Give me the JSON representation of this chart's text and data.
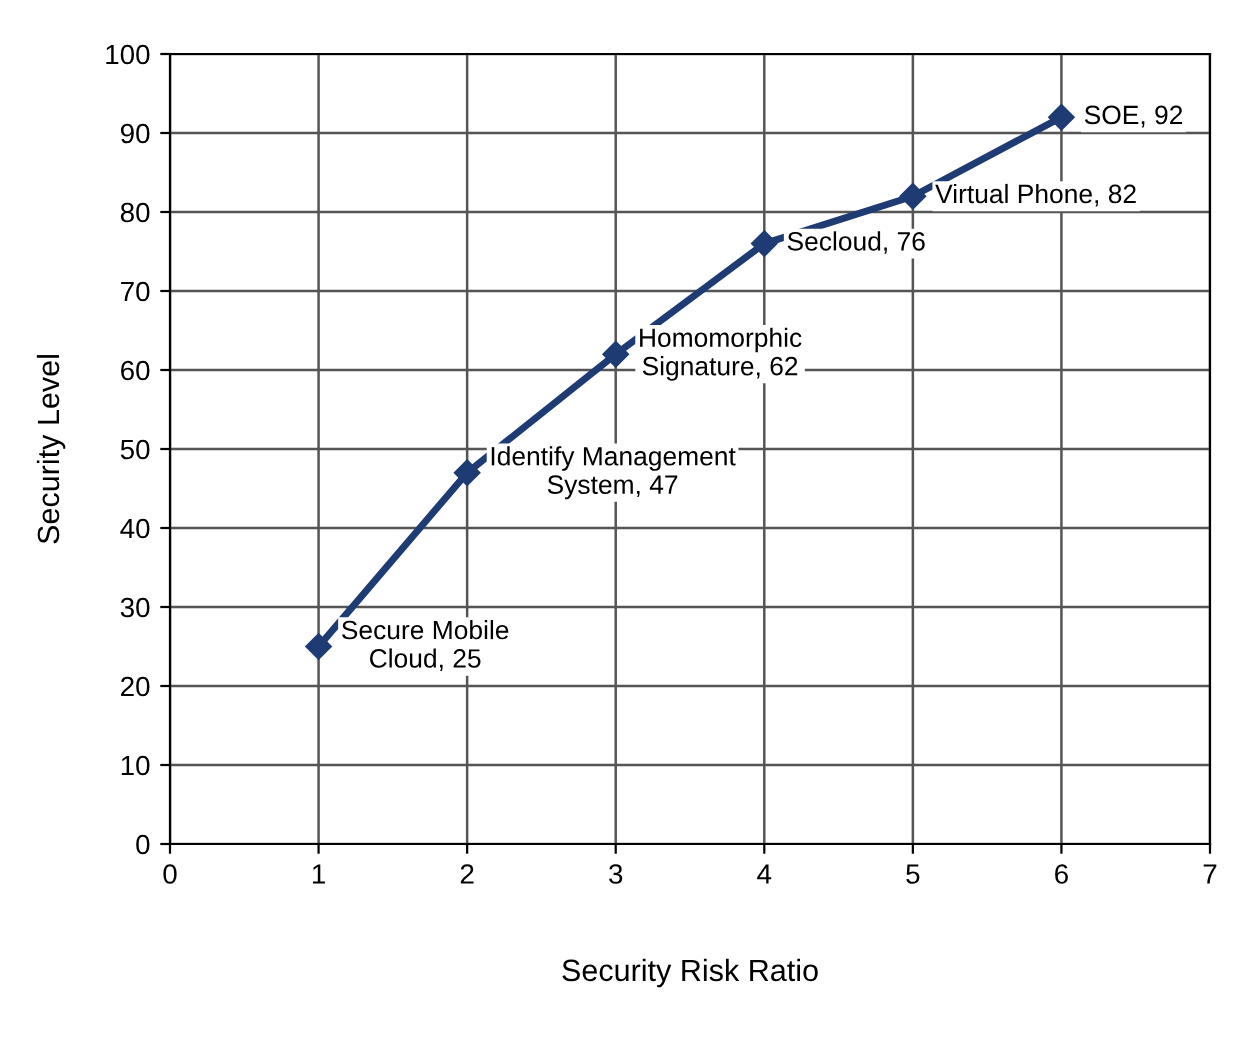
{
  "chart_data": {
    "type": "line",
    "xlabel": "Security Risk Ratio",
    "ylabel": "Security Level",
    "x": [
      1,
      2,
      3,
      4,
      5,
      6
    ],
    "series": [
      {
        "color": "#1f3b73",
        "values": [
          25,
          47,
          62,
          76,
          82,
          92
        ]
      }
    ],
    "xlim": [
      0,
      7
    ],
    "xticks": [
      0,
      1,
      2,
      3,
      4,
      5,
      6,
      7
    ],
    "ylim": [
      0,
      100
    ],
    "yticks": [
      0,
      10,
      20,
      30,
      40,
      50,
      60,
      70,
      80,
      90,
      100
    ],
    "grid": true,
    "marker": "diamond",
    "line_style": "solid",
    "annotations": [
      {
        "text": "Secure Mobile Cloud, 25",
        "x": 1,
        "y": 25
      },
      {
        "text": "Identify Management System, 47",
        "x": 2,
        "y": 47
      },
      {
        "text": "Homomorphic Signature, 62",
        "x": 3,
        "y": 62
      },
      {
        "text": "Secloud, 76",
        "x": 4,
        "y": 76
      },
      {
        "text": "Virtual Phone, 82",
        "x": 5,
        "y": 82
      },
      {
        "text": "SOE, 92",
        "x": 6,
        "y": 92
      }
    ]
  }
}
